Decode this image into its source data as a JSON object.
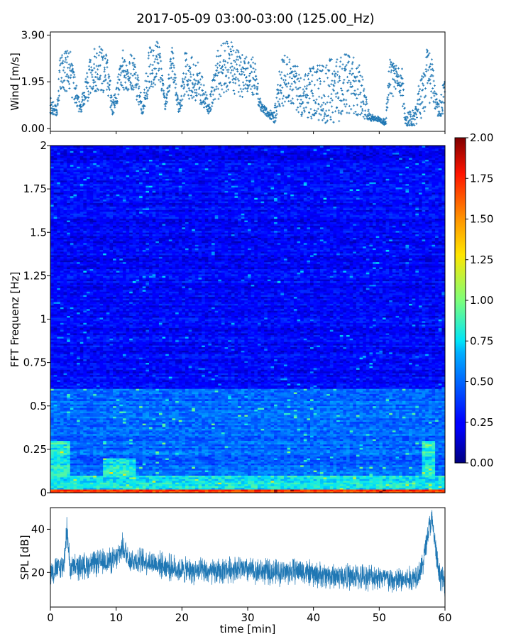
{
  "title": "2017-05-09 03:00-03:00 (125.00_Hz)",
  "colors": {
    "series": "#1f77b4"
  },
  "chart_data": [
    {
      "type": "scatter",
      "name": "wind",
      "ylabel": "Wind [m/s]",
      "ylim": [
        0.0,
        3.9
      ],
      "yticks": [
        "0.00",
        "1.95",
        "3.90"
      ],
      "xlim": [
        0,
        60
      ],
      "marker": "+",
      "envelope": [
        {
          "x": 0,
          "lo": 0.6,
          "hi": 1.3
        },
        {
          "x": 1,
          "lo": 0.5,
          "hi": 0.9
        },
        {
          "x": 1.5,
          "lo": 1.6,
          "hi": 3.3
        },
        {
          "x": 3,
          "lo": 1.4,
          "hi": 3.3
        },
        {
          "x": 4.5,
          "lo": 0.6,
          "hi": 1.0
        },
        {
          "x": 6.5,
          "lo": 1.5,
          "hi": 3.5
        },
        {
          "x": 8.5,
          "lo": 1.5,
          "hi": 3.4
        },
        {
          "x": 9.5,
          "lo": 0.5,
          "hi": 1.1
        },
        {
          "x": 11,
          "lo": 1.6,
          "hi": 3.3
        },
        {
          "x": 13,
          "lo": 1.3,
          "hi": 3.0
        },
        {
          "x": 14,
          "lo": 0.5,
          "hi": 1.0
        },
        {
          "x": 15,
          "lo": 1.5,
          "hi": 3.4
        },
        {
          "x": 16.5,
          "lo": 2.0,
          "hi": 3.7
        },
        {
          "x": 17.5,
          "lo": 0.7,
          "hi": 1.0
        },
        {
          "x": 18.5,
          "lo": 2.2,
          "hi": 3.6
        },
        {
          "x": 19.5,
          "lo": 0.6,
          "hi": 1.0
        },
        {
          "x": 20.5,
          "lo": 1.3,
          "hi": 3.2
        },
        {
          "x": 22.5,
          "lo": 1.1,
          "hi": 2.8
        },
        {
          "x": 24,
          "lo": 0.6,
          "hi": 1.2
        },
        {
          "x": 25.5,
          "lo": 1.2,
          "hi": 3.3
        },
        {
          "x": 27,
          "lo": 1.6,
          "hi": 3.8
        },
        {
          "x": 29,
          "lo": 1.3,
          "hi": 3.1
        },
        {
          "x": 31,
          "lo": 1.4,
          "hi": 3.0
        },
        {
          "x": 32,
          "lo": 0.7,
          "hi": 1.1
        },
        {
          "x": 33,
          "lo": 0.5,
          "hi": 0.8
        },
        {
          "x": 34,
          "lo": 0.2,
          "hi": 0.7
        },
        {
          "x": 35,
          "lo": 0.7,
          "hi": 2.8
        },
        {
          "x": 36,
          "lo": 1.2,
          "hi": 3.2
        },
        {
          "x": 38,
          "lo": 0.5,
          "hi": 2.6
        },
        {
          "x": 40,
          "lo": 0.4,
          "hi": 2.6
        },
        {
          "x": 42,
          "lo": 0.2,
          "hi": 2.9
        },
        {
          "x": 44,
          "lo": 0.3,
          "hi": 3.0
        },
        {
          "x": 45.5,
          "lo": 0.6,
          "hi": 3.2
        },
        {
          "x": 47,
          "lo": 0.5,
          "hi": 2.8
        },
        {
          "x": 48.5,
          "lo": 0.3,
          "hi": 0.6
        },
        {
          "x": 50,
          "lo": 0.3,
          "hi": 0.5
        },
        {
          "x": 51,
          "lo": 0.1,
          "hi": 0.4
        },
        {
          "x": 51.5,
          "lo": 1.5,
          "hi": 2.9
        },
        {
          "x": 53.5,
          "lo": 1.0,
          "hi": 2.5
        },
        {
          "x": 54,
          "lo": 0.1,
          "hi": 0.6
        },
        {
          "x": 55.5,
          "lo": 0.1,
          "hi": 1.0
        },
        {
          "x": 57,
          "lo": 0.6,
          "hi": 3.5
        },
        {
          "x": 58,
          "lo": 1.2,
          "hi": 3.0
        },
        {
          "x": 59,
          "lo": 0.4,
          "hi": 1.0
        },
        {
          "x": 60,
          "lo": 0.7,
          "hi": 2.2
        }
      ]
    },
    {
      "type": "heatmap",
      "name": "spectrogram",
      "ylabel": "FFT Frequenz [Hz]",
      "ylim": [
        0,
        2
      ],
      "yticks": [
        "0",
        "0.25",
        "0.5",
        "0.75",
        "1",
        "1.25",
        "1.5",
        "1.75",
        "2"
      ],
      "xlim": [
        0,
        60
      ],
      "colorbar": {
        "range": [
          0.0,
          2.0
        ],
        "ticks": [
          "0.00",
          "0.25",
          "0.50",
          "0.75",
          "1.00",
          "1.25",
          "1.50",
          "1.75",
          "2.00"
        ],
        "colormap": "jet"
      },
      "features": [
        {
          "x0": 0,
          "x1": 60,
          "f0": 0.0,
          "f1": 0.02,
          "value": 1.7
        },
        {
          "x0": 0,
          "x1": 60,
          "f0": 0.02,
          "f1": 0.1,
          "value": 0.8
        },
        {
          "x0": 0,
          "x1": 3.2,
          "f0": 0.1,
          "f1": 0.3,
          "value": 0.8
        },
        {
          "x0": 8,
          "x1": 13,
          "f0": 0.1,
          "f1": 0.2,
          "value": 0.8
        },
        {
          "x0": 56.5,
          "x1": 58.5,
          "f0": 0.05,
          "f1": 0.3,
          "value": 0.8
        },
        {
          "x0": 0,
          "x1": 60,
          "f0": 0.1,
          "f1": 0.6,
          "value": 0.5
        },
        {
          "x0": 0,
          "x1": 60,
          "f0": 0.6,
          "f1": 2.0,
          "value": 0.25
        }
      ]
    },
    {
      "type": "line",
      "name": "spl",
      "ylabel": "SPL [dB]",
      "xlabel": "time [min]",
      "ylim": [
        4,
        50
      ],
      "yticks": [
        "20",
        "40"
      ],
      "xlim": [
        0,
        60
      ],
      "xticks": [
        "0",
        "10",
        "20",
        "30",
        "40",
        "50",
        "60"
      ],
      "center": [
        {
          "x": 0,
          "y": 20
        },
        {
          "x": 2,
          "y": 23
        },
        {
          "x": 2.5,
          "y": 40
        },
        {
          "x": 3,
          "y": 22
        },
        {
          "x": 5,
          "y": 23
        },
        {
          "x": 10,
          "y": 26
        },
        {
          "x": 11,
          "y": 32
        },
        {
          "x": 12,
          "y": 26
        },
        {
          "x": 15,
          "y": 25
        },
        {
          "x": 20,
          "y": 21
        },
        {
          "x": 25,
          "y": 20
        },
        {
          "x": 28,
          "y": 22
        },
        {
          "x": 30,
          "y": 21
        },
        {
          "x": 35,
          "y": 20
        },
        {
          "x": 38,
          "y": 21
        },
        {
          "x": 40,
          "y": 19
        },
        {
          "x": 45,
          "y": 18
        },
        {
          "x": 50,
          "y": 18
        },
        {
          "x": 52,
          "y": 16
        },
        {
          "x": 55,
          "y": 17
        },
        {
          "x": 56.5,
          "y": 22
        },
        {
          "x": 57.5,
          "y": 40
        },
        {
          "x": 58,
          "y": 44
        },
        {
          "x": 58.5,
          "y": 33
        },
        {
          "x": 59,
          "y": 20
        },
        {
          "x": 60,
          "y": 15
        }
      ],
      "band": 5
    }
  ]
}
